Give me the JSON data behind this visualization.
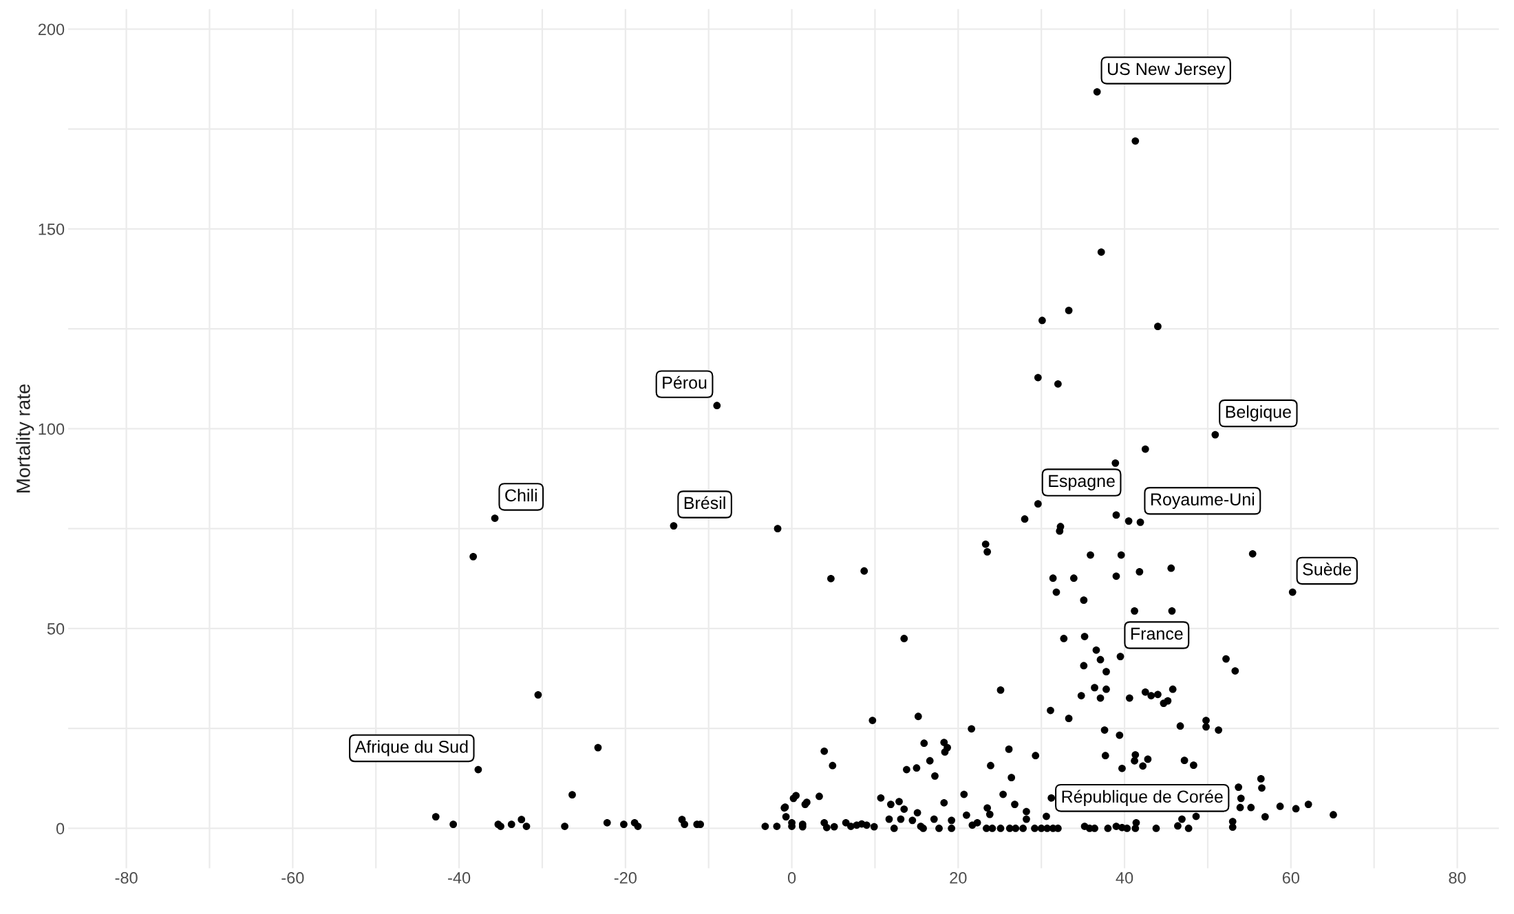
{
  "chart_data": {
    "type": "scatter",
    "ylabel": "Mortality rate",
    "xlim": [
      -87,
      85
    ],
    "ylim": [
      -10,
      205
    ],
    "xticks": [
      -80,
      {
        "value": -70,
        "label": null
      },
      -60,
      {
        "value": -50,
        "label": null
      },
      -40,
      {
        "value": -30,
        "label": null
      },
      -20,
      {
        "value": -10,
        "label": null
      },
      0,
      {
        "value": 10,
        "label": null
      },
      20,
      {
        "value": 30,
        "label": null
      },
      40,
      {
        "value": 50,
        "label": null
      },
      60,
      {
        "value": 70,
        "label": null
      },
      80
    ],
    "yticks": [
      0,
      {
        "value": 25,
        "label": null
      },
      50,
      {
        "value": 75,
        "label": null
      },
      100,
      {
        "value": 125,
        "label": null
      },
      150,
      {
        "value": 175,
        "label": null
      },
      200
    ],
    "grid": true,
    "marker": "circle",
    "series": [
      {
        "color": "#000000",
        "x": [
          -42.8,
          -40.7,
          -35.7,
          -38.3,
          -37.7,
          -35.3,
          -35.0,
          -33.7,
          -32.5,
          -31.9,
          -30.5,
          -27.3,
          -26.4,
          -23.3,
          -22.2,
          -20.2,
          -18.9,
          -18.5,
          -14.2,
          -13.2,
          -12.9,
          -11.4,
          -11.0,
          -9.0,
          -3.2,
          -1.8,
          -1.7,
          -0.8,
          -0.7,
          0.5,
          0.0,
          1.3,
          1.8,
          4.7,
          8.7,
          13.5,
          3.9,
          4.9,
          3.3,
          0.2,
          1.6,
          -0.9,
          0.0,
          1.3,
          3.9,
          4.2,
          5.1,
          6.5,
          7.1,
          7.8,
          8.4,
          9.0,
          9.9,
          9.7,
          10.7,
          11.9,
          12.9,
          13.5,
          11.7,
          12.3,
          13.1,
          14.5,
          15.1,
          15.5,
          15.8,
          15.2,
          15.9,
          13.8,
          15.0,
          16.6,
          17.2,
          18.3,
          18.7,
          18.4,
          17.1,
          17.7,
          19.2,
          19.2,
          18.3,
          20.7,
          21.6,
          21.0,
          21.7,
          22.3,
          23.4,
          24.1,
          25.1,
          25.1,
          26.1,
          23.9,
          26.4,
          23.5,
          23.8,
          25.4,
          26.8,
          28.2,
          28.2,
          26.2,
          26.9,
          27.8,
          29.3,
          29.2,
          30.0,
          30.6,
          30.7,
          31.4,
          32.0,
          31.1,
          33.3,
          31.2,
          32.7,
          35.2,
          35.1,
          36.6,
          37.1,
          37.8,
          36.4,
          37.8,
          34.8,
          37.1,
          40.6,
          42.5,
          43.2,
          44.0,
          37.6,
          39.4,
          37.7,
          41.3,
          41.2,
          42.8,
          42.2,
          39.7,
          35.2,
          35.8,
          36.4,
          38.0,
          39.0,
          39.7,
          40.3,
          41.4,
          41.3,
          39.5,
          52.2,
          53.3,
          45.8,
          44.7,
          45.2,
          46.7,
          49.8,
          49.8,
          51.3,
          47.2,
          48.3,
          53.7,
          56.4,
          56.5,
          54.0,
          53.9,
          55.2,
          56.9,
          58.7,
          60.6,
          62.1,
          65.1,
          53.0,
          53.0,
          43.8,
          46.4,
          47.7,
          46.9,
          48.6,
          33.3,
          30.1,
          44.0,
          29.6,
          32.0,
          50.9,
          42.5,
          38.9,
          29.6,
          28.0,
          32.3,
          32.2,
          39.0,
          40.5,
          41.9,
          23.3,
          23.5,
          35.9,
          39.6,
          55.4,
          31.4,
          33.9,
          39.0,
          41.8,
          45.6,
          31.8,
          35.1,
          60.2,
          45.7,
          41.2,
          36.7,
          41.3,
          37.2
        ],
        "values": [
          2.9,
          1.0,
          77.6,
          68.0,
          14.7,
          1.0,
          0.5,
          1.0,
          2.2,
          0.5,
          33.4,
          0.5,
          8.4,
          20.2,
          1.4,
          1.0,
          1.4,
          0.5,
          75.7,
          2.2,
          1.0,
          1.0,
          1.0,
          105.8,
          0.5,
          0.5,
          75.0,
          5.3,
          2.9,
          8.2,
          0.5,
          1.0,
          6.5,
          62.5,
          64.4,
          47.5,
          19.3,
          15.7,
          8.0,
          7.5,
          6.0,
          5.1,
          1.4,
          0.4,
          1.4,
          0.2,
          0.4,
          1.4,
          0.5,
          0.8,
          1.1,
          0.8,
          0.4,
          27.0,
          7.6,
          6.0,
          6.7,
          4.8,
          2.3,
          0.0,
          2.3,
          2.0,
          3.9,
          0.5,
          0.0,
          28.0,
          21.3,
          14.7,
          15.1,
          16.9,
          13.1,
          21.5,
          20.2,
          19.1,
          2.3,
          0.0,
          2.0,
          0.0,
          6.4,
          8.5,
          24.9,
          3.3,
          0.8,
          1.4,
          0.0,
          0.0,
          34.6,
          0.0,
          19.8,
          15.7,
          12.7,
          5.1,
          3.5,
          8.5,
          6.0,
          4.2,
          2.3,
          0.0,
          0.0,
          0.0,
          18.2,
          0.0,
          0.0,
          3.0,
          0.0,
          0.0,
          0.0,
          29.5,
          27.5,
          7.6,
          47.5,
          48.0,
          40.7,
          44.6,
          42.2,
          39.2,
          35.2,
          34.8,
          33.2,
          32.6,
          32.6,
          34.1,
          33.2,
          33.5,
          24.6,
          23.3,
          18.2,
          18.4,
          16.9,
          17.3,
          15.6,
          15.0,
          0.5,
          0.0,
          0.0,
          0.0,
          0.5,
          0.2,
          0.0,
          1.4,
          0.0,
          43.0,
          42.4,
          39.4,
          34.8,
          31.3,
          31.9,
          25.6,
          27.0,
          25.4,
          24.6,
          17.0,
          15.8,
          10.3,
          12.4,
          10.1,
          7.5,
          5.2,
          5.2,
          2.9,
          5.5,
          4.9,
          6.0,
          3.4,
          1.7,
          0.3,
          0.0,
          0.6,
          0.0,
          2.3,
          3.0,
          129.6,
          127.1,
          125.6,
          112.8,
          111.2,
          98.5,
          94.9,
          91.4,
          81.2,
          77.4,
          75.5,
          74.4,
          78.4,
          76.9,
          76.6,
          71.1,
          69.2,
          68.4,
          68.4,
          68.7,
          62.6,
          62.6,
          63.1,
          64.2,
          65.1,
          59.1,
          57.1,
          59.1,
          54.4,
          54.4,
          184.3,
          172.0,
          144.2
        ]
      }
    ],
    "annotations": [
      {
        "text": "US New Jersey",
        "x": 36.7,
        "y": 184.3
      },
      {
        "text": "Pérou",
        "x": -9.0,
        "y": 105.8
      },
      {
        "text": "Belgique",
        "x": 50.9,
        "y": 98.5
      },
      {
        "text": "Chili",
        "x": -35.7,
        "y": 77.6
      },
      {
        "text": "Brésil",
        "x": -14.2,
        "y": 75.7
      },
      {
        "text": "Espagne",
        "x": 29.6,
        "y": 81.2
      },
      {
        "text": "Royaume-Uni",
        "x": 41.9,
        "y": 76.6
      },
      {
        "text": "Suède",
        "x": 60.2,
        "y": 59.1
      },
      {
        "text": "France",
        "x": 39.5,
        "y": 43.0
      },
      {
        "text": "Afrique du Sud",
        "x": -37.7,
        "y": 14.7
      },
      {
        "text": "République de Corée",
        "x": 31.2,
        "y": 7.6
      }
    ]
  }
}
